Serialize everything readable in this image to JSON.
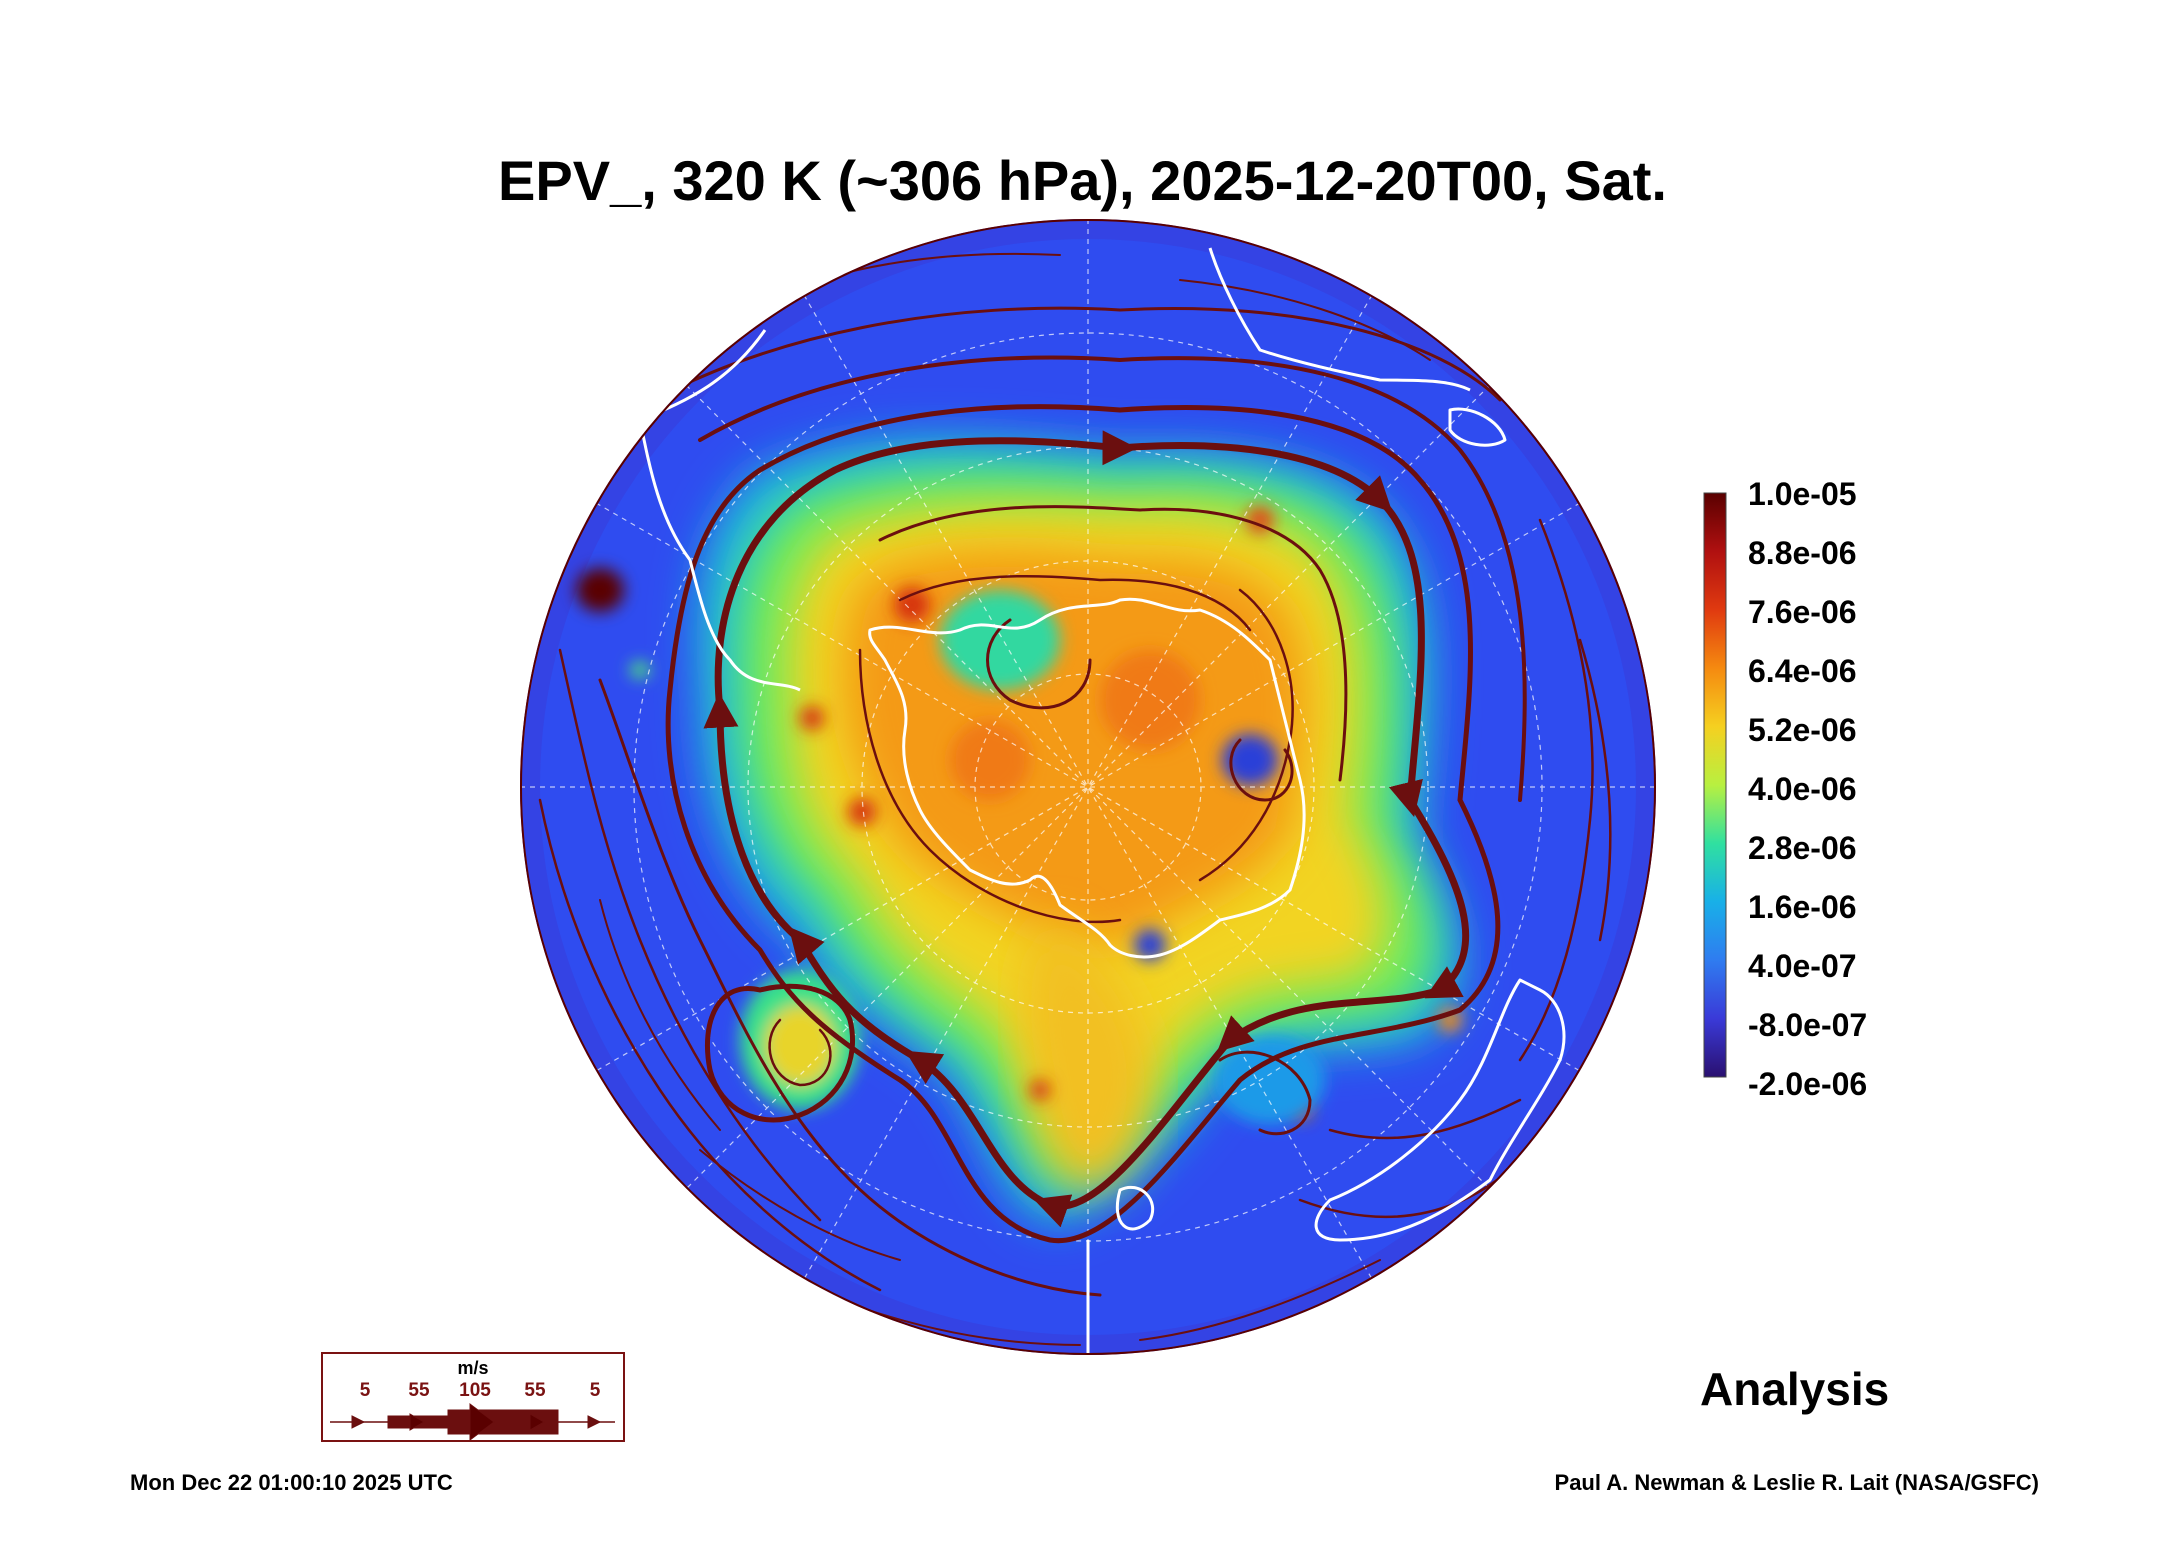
{
  "title": "EPV_, 320 K (~306 hPa), 2025-12-20T00, Sat.",
  "colorbar": {
    "labels": [
      "1.0e-05",
      "8.8e-06",
      "7.6e-06",
      "6.4e-06",
      "5.2e-06",
      "4.0e-06",
      "2.8e-06",
      "1.6e-06",
      "4.0e-07",
      "-8.0e-07",
      "-2.0e-06"
    ],
    "colors": [
      "#5a0000",
      "#b01010",
      "#e03a10",
      "#f58a10",
      "#f5d020",
      "#b8f040",
      "#30e0a0",
      "#18b0e8",
      "#2f7cf0",
      "#3a3ad8",
      "#2a1070"
    ]
  },
  "wind_legend": {
    "units": "m/s",
    "ticks": [
      "5",
      "55",
      "105",
      "55",
      "5"
    ]
  },
  "label": "Analysis",
  "timestamp": "Mon Dec 22 01:00:10 2025 UTC",
  "credit": "Paul A. Newman & Leslie R. Lait (NASA/GSFC)"
}
